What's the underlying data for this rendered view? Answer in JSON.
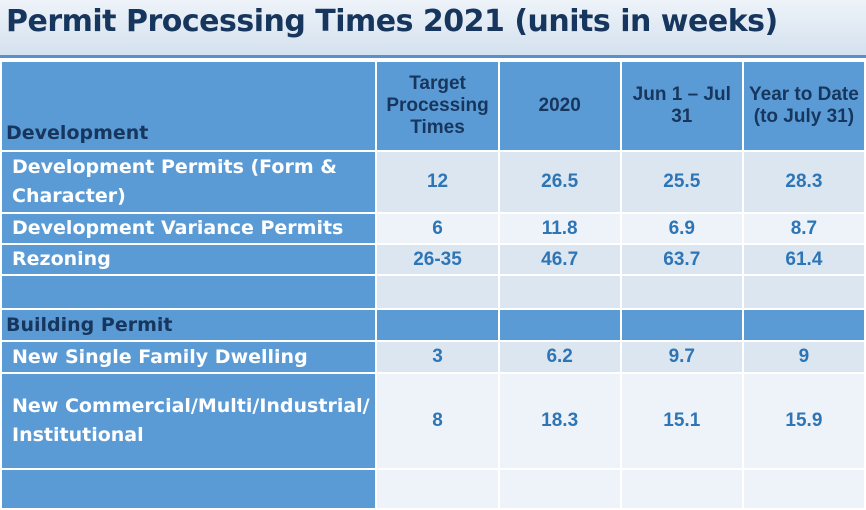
{
  "title": "Permit Processing Times 2021 (units in weeks)",
  "headers": {
    "development": "Development",
    "target": "Target Processing Times",
    "y2020": "2020",
    "jun_jul": "Jun 1 – Jul 31",
    "ytd": "Year to Date (to July 31)"
  },
  "development_rows": [
    {
      "label": "Development Permits (Form & Character)",
      "target": "12",
      "y2020": "26.5",
      "jun_jul": "25.5",
      "ytd": "28.3"
    },
    {
      "label": "Development Variance Permits",
      "target": "6",
      "y2020": "11.8",
      "jun_jul": "6.9",
      "ytd": "8.7"
    },
    {
      "label": "Rezoning",
      "target": "26-35",
      "y2020": "46.7",
      "jun_jul": "63.7",
      "ytd": "61.4"
    }
  ],
  "building_section": "Building Permit",
  "building_rows": [
    {
      "label": "New Single Family Dwelling",
      "target": "3",
      "y2020": "6.2",
      "jun_jul": "9.7",
      "ytd": "9"
    },
    {
      "label": "New Commercial/Multi/Industrial/Institutional",
      "target": "8",
      "y2020": "18.3",
      "jun_jul": "15.1",
      "ytd": "15.9"
    }
  ],
  "colors": {
    "title_text": "#17365d",
    "header_bg": "#5b9bd5",
    "value_text": "#2e75b6"
  }
}
